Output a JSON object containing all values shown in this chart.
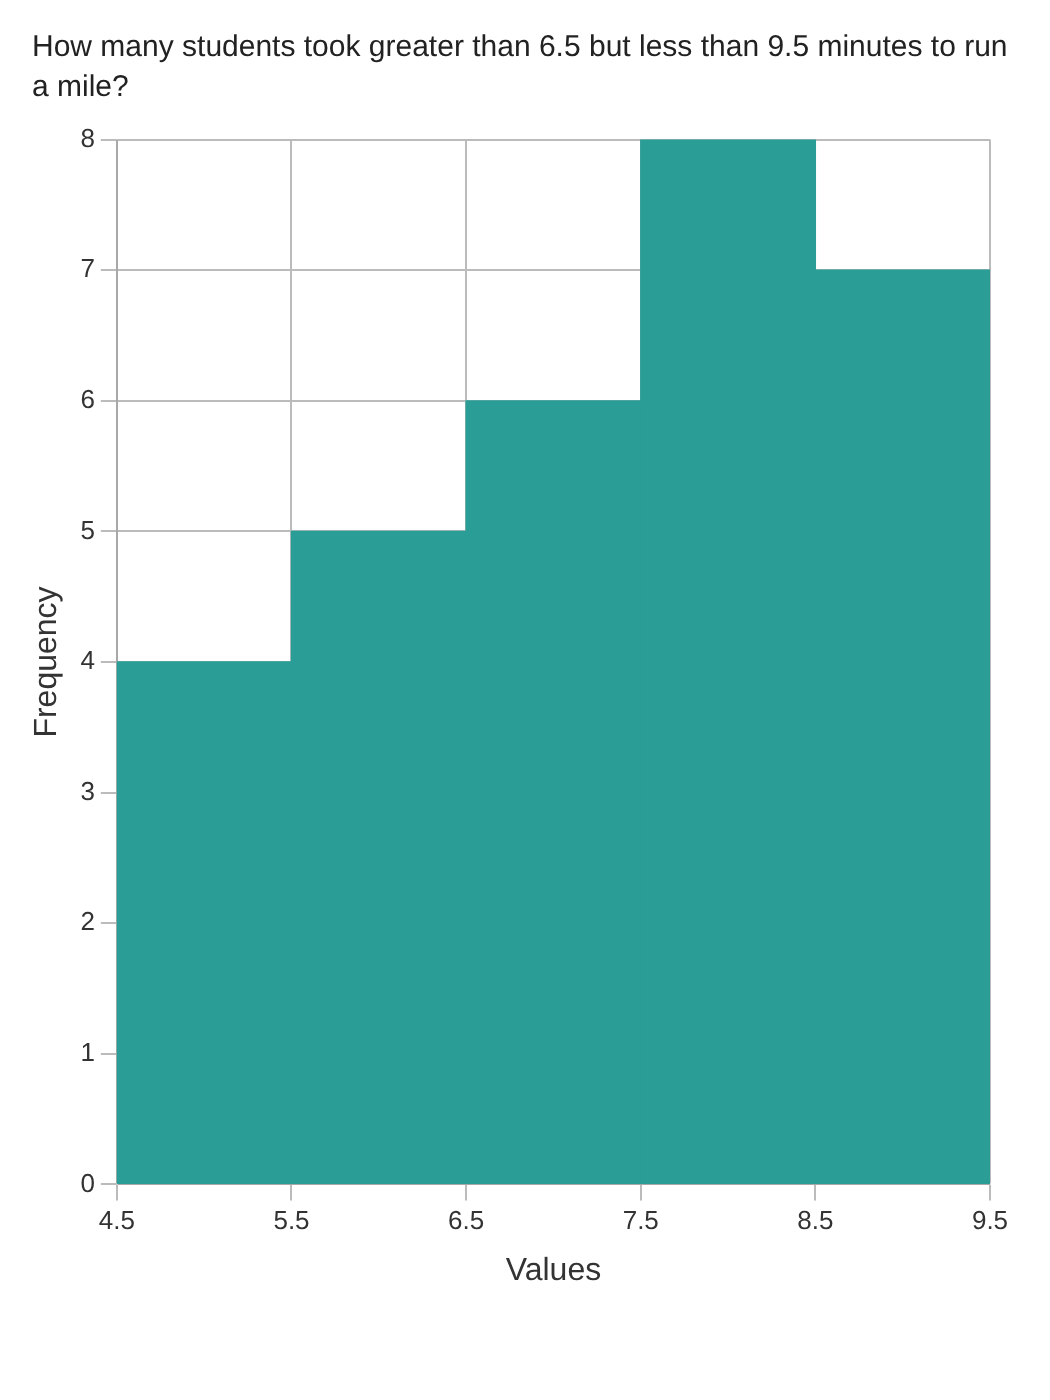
{
  "chart_data": {
    "type": "histogram",
    "title": "How many students took greater than 6.5 but less than 9.5 minutes to run a mile?",
    "xlabel": "Values",
    "ylabel": "Frequency",
    "bins": [
      4.5,
      5.5,
      6.5,
      7.5,
      8.5,
      9.5
    ],
    "values": [
      4,
      5,
      6,
      8,
      7
    ],
    "color": "#2a9d96",
    "xlim": [
      4.5,
      9.5
    ],
    "xticks": [
      4.5,
      5.5,
      6.5,
      7.5,
      8.5,
      9.5
    ],
    "ylim": [
      0,
      8
    ],
    "yticks": [
      0,
      1,
      2,
      3,
      4,
      5,
      6,
      7,
      8
    ],
    "grid": true
  }
}
